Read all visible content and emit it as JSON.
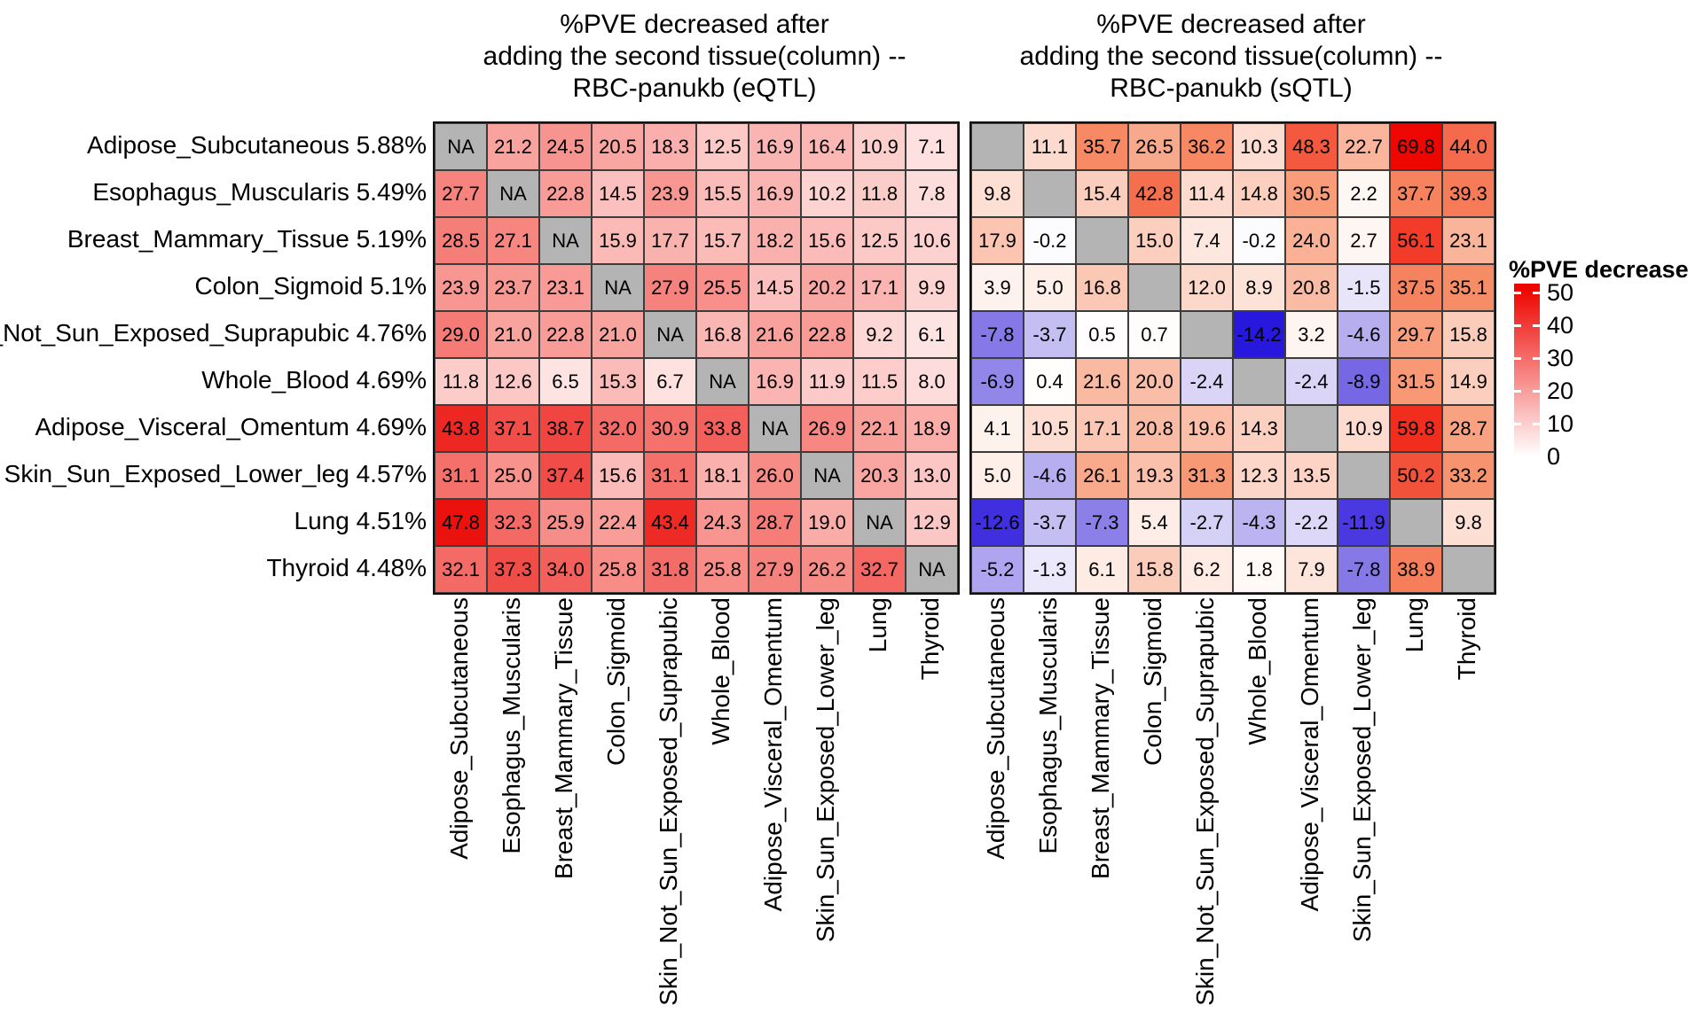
{
  "titles": {
    "left": "%PVE decreased after\nadding the second tissue(column) --\nRBC-panukb (eQTL)",
    "right": "%PVE decreased after\nadding the second tissue(column) --\nRBC-panukb (sQTL)"
  },
  "row_labels": [
    {
      "tissue": "Adipose_Subcutaneous",
      "pve": "5.88%"
    },
    {
      "tissue": "Esophagus_Muscularis",
      "pve": "5.49%"
    },
    {
      "tissue": "Breast_Mammary_Tissue",
      "pve": "5.19%"
    },
    {
      "tissue": "Colon_Sigmoid",
      "pve": "5.1%"
    },
    {
      "tissue": "Skin_Not_Sun_Exposed_Suprapubic",
      "pve": "4.76%"
    },
    {
      "tissue": "Whole_Blood",
      "pve": "4.69%"
    },
    {
      "tissue": "Adipose_Visceral_Omentum",
      "pve": "4.69%"
    },
    {
      "tissue": "Skin_Sun_Exposed_Lower_leg",
      "pve": "4.57%"
    },
    {
      "tissue": "Lung",
      "pve": "4.51%"
    },
    {
      "tissue": "Thyroid",
      "pve": "4.48%"
    }
  ],
  "column_labels": [
    "Adipose_Subcutaneous",
    "Esophagus_Muscularis",
    "Breast_Mammary_Tissue",
    "Colon_Sigmoid",
    "Skin_Not_Sun_Exposed_Suprapubic",
    "Whole_Blood",
    "Adipose_Visceral_Omentum",
    "Skin_Sun_Exposed_Lower_leg",
    "Lung",
    "Thyroid"
  ],
  "legend": {
    "title": "%PVE decrease",
    "tick_labels": [
      "50",
      "40",
      "30",
      "20",
      "10",
      "0"
    ],
    "gradient_top_color": "#EE0500",
    "gradient_bottom_color": "#FFFFFF"
  },
  "chart_data": {
    "type": "heatmap",
    "na_color": "#B4B4B4",
    "legend_range": [
      0,
      50
    ],
    "color_scale": {
      "negative": {
        "limit": 14.5,
        "stops": [
          "#FFFFFF",
          "#8E80E8",
          "#2412DC"
        ]
      }
    },
    "panels": [
      {
        "name": "RBC-panukb (eQTL)",
        "side": "left",
        "na_text": "NA",
        "positive_max": 50,
        "positive_stops": [
          "#FFFFFF",
          "#F8928D",
          "#EA0500"
        ],
        "values": [
          [
            null,
            21.2,
            24.5,
            20.5,
            18.3,
            12.5,
            16.9,
            16.4,
            10.9,
            7.1
          ],
          [
            27.7,
            null,
            22.8,
            14.5,
            23.9,
            15.5,
            16.9,
            10.2,
            11.8,
            7.8
          ],
          [
            28.5,
            27.1,
            null,
            15.9,
            17.7,
            15.7,
            18.2,
            15.6,
            12.5,
            10.6
          ],
          [
            23.9,
            23.7,
            23.1,
            null,
            27.9,
            25.5,
            14.5,
            20.2,
            17.1,
            9.9
          ],
          [
            29.0,
            21.0,
            22.8,
            21.0,
            null,
            16.8,
            21.6,
            22.8,
            9.2,
            6.1
          ],
          [
            11.8,
            12.6,
            6.5,
            15.3,
            6.7,
            null,
            16.9,
            11.9,
            11.5,
            8.0
          ],
          [
            43.8,
            37.1,
            38.7,
            32.0,
            30.9,
            33.8,
            null,
            26.9,
            22.1,
            18.9
          ],
          [
            31.1,
            25.0,
            37.4,
            15.6,
            31.1,
            18.1,
            26.0,
            null,
            20.3,
            13.0
          ],
          [
            47.8,
            32.3,
            25.9,
            22.4,
            43.4,
            24.3,
            28.7,
            19.0,
            null,
            12.9
          ],
          [
            32.1,
            37.3,
            34.0,
            25.8,
            31.8,
            25.8,
            27.9,
            26.2,
            32.7,
            null
          ]
        ]
      },
      {
        "name": "RBC-panukb (sQTL)",
        "side": "right",
        "na_text": "",
        "positive_max": 70,
        "positive_stops": [
          "#FFFFFF",
          "#F78D66",
          "#EE0500"
        ],
        "values": [
          [
            null,
            11.1,
            35.7,
            26.5,
            36.2,
            10.3,
            48.3,
            22.7,
            69.8,
            44.0
          ],
          [
            9.8,
            null,
            15.4,
            42.8,
            11.4,
            14.8,
            30.5,
            2.2,
            37.7,
            39.3
          ],
          [
            17.9,
            -0.2,
            null,
            15.0,
            7.4,
            -0.2,
            24.0,
            2.7,
            56.1,
            23.1
          ],
          [
            3.9,
            5.0,
            16.8,
            null,
            12.0,
            8.9,
            20.8,
            -1.5,
            37.5,
            35.1
          ],
          [
            -7.8,
            -3.7,
            0.5,
            0.7,
            null,
            -14.2,
            3.2,
            -4.6,
            29.7,
            15.8
          ],
          [
            -6.9,
            0.4,
            21.6,
            20.0,
            -2.4,
            null,
            -2.4,
            -8.9,
            31.5,
            14.9
          ],
          [
            4.1,
            10.5,
            17.1,
            20.8,
            19.6,
            14.3,
            null,
            10.9,
            59.8,
            28.7
          ],
          [
            5.0,
            -4.6,
            26.1,
            19.3,
            31.3,
            12.3,
            13.5,
            null,
            50.2,
            33.2
          ],
          [
            -12.6,
            -3.7,
            -7.3,
            5.4,
            -2.7,
            -4.3,
            -2.2,
            -11.9,
            null,
            9.8
          ],
          [
            -5.2,
            -1.3,
            6.1,
            15.8,
            6.2,
            1.8,
            7.9,
            -7.8,
            38.9,
            null
          ]
        ]
      }
    ]
  }
}
